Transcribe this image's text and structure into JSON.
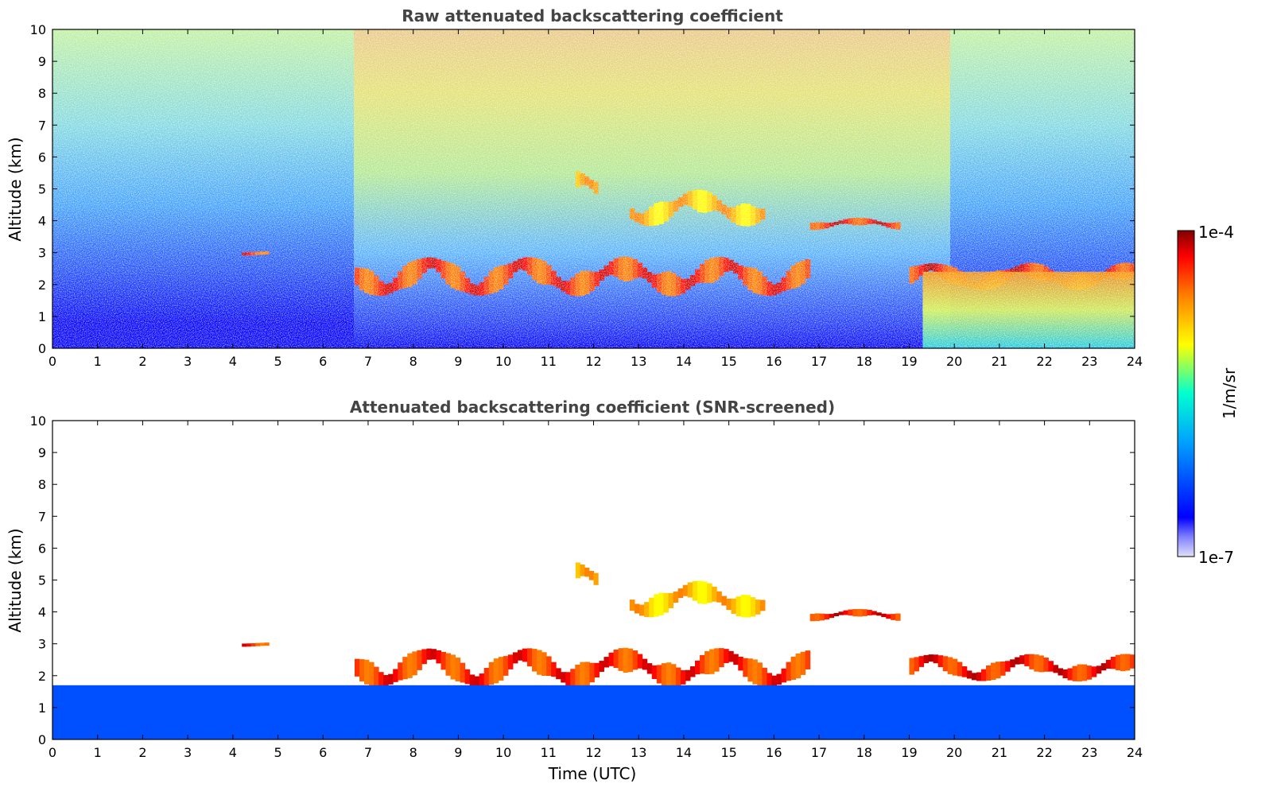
{
  "chart_data": [
    {
      "type": "heatmap",
      "title": "Raw attenuated backscattering coefficient",
      "xlabel": "",
      "ylabel": "Altitude (km)",
      "xlim": [
        0,
        24
      ],
      "ylim": [
        0,
        10
      ],
      "xticks": [
        0,
        1,
        2,
        3,
        4,
        5,
        6,
        7,
        8,
        9,
        10,
        11,
        12,
        13,
        14,
        15,
        16,
        17,
        18,
        19,
        20,
        21,
        22,
        23,
        24
      ],
      "yticks": [
        0,
        1,
        2,
        3,
        4,
        5,
        6,
        7,
        8,
        9,
        10
      ],
      "screened": false,
      "features": [
        {
          "kind": "cloud_layer",
          "x": [
            6.7,
            16.8
          ],
          "y": [
            1.6,
            2.9
          ],
          "level": 0.95
        },
        {
          "kind": "cloud_layer",
          "x": [
            16.8,
            18.8
          ],
          "y": [
            3.7,
            4.1
          ],
          "level": 0.97
        },
        {
          "kind": "cloud_layer",
          "x": [
            19.0,
            24.0
          ],
          "y": [
            1.8,
            2.7
          ],
          "level": 0.97
        },
        {
          "kind": "cloud_layer",
          "x": [
            11.6,
            12.1
          ],
          "y": [
            4.5,
            5.6
          ],
          "level": 0.8
        },
        {
          "kind": "cloud_layer",
          "x": [
            12.8,
            15.8
          ],
          "y": [
            3.8,
            5.0
          ],
          "level": 0.8
        },
        {
          "kind": "cloud_layer",
          "x": [
            4.2,
            4.8
          ],
          "y": [
            2.9,
            3.05
          ],
          "level": 0.95
        },
        {
          "kind": "boundary_layer",
          "x": [
            19.3,
            24.0
          ],
          "y": [
            0.0,
            2.4
          ],
          "level": 0.6
        }
      ]
    },
    {
      "type": "heatmap",
      "title": "Attenuated backscattering coefficient (SNR-screened)",
      "xlabel": "Time (UTC)",
      "ylabel": "Altitude (km)",
      "xlim": [
        0,
        24
      ],
      "ylim": [
        0,
        10
      ],
      "xticks": [
        0,
        1,
        2,
        3,
        4,
        5,
        6,
        7,
        8,
        9,
        10,
        11,
        12,
        13,
        14,
        15,
        16,
        17,
        18,
        19,
        20,
        21,
        22,
        23,
        24
      ],
      "yticks": [
        0,
        1,
        2,
        3,
        4,
        5,
        6,
        7,
        8,
        9,
        10
      ],
      "screened": true,
      "features": [
        {
          "kind": "cloud_layer",
          "x": [
            6.7,
            16.8
          ],
          "y": [
            1.6,
            2.9
          ],
          "level": 0.95
        },
        {
          "kind": "cloud_layer",
          "x": [
            16.8,
            18.8
          ],
          "y": [
            3.7,
            4.1
          ],
          "level": 0.97
        },
        {
          "kind": "cloud_layer",
          "x": [
            19.0,
            24.0
          ],
          "y": [
            1.8,
            2.7
          ],
          "level": 0.97
        },
        {
          "kind": "cloud_layer",
          "x": [
            11.6,
            12.1
          ],
          "y": [
            4.5,
            5.6
          ],
          "level": 0.8
        },
        {
          "kind": "cloud_layer",
          "x": [
            12.8,
            15.8
          ],
          "y": [
            3.8,
            5.0
          ],
          "level": 0.8
        },
        {
          "kind": "cloud_layer",
          "x": [
            4.2,
            4.8
          ],
          "y": [
            2.9,
            3.05
          ],
          "level": 0.95
        },
        {
          "kind": "boundary_layer",
          "x": [
            0,
            24
          ],
          "y": [
            0.0,
            1.7
          ],
          "level": 0.15
        }
      ]
    }
  ],
  "colorbar": {
    "label": "1/m/sr",
    "max_label": "1e-4",
    "min_label": "1e-7",
    "range": [
      "1e-7",
      "1e-4"
    ],
    "colormap": "jet",
    "colors": [
      "#d8d8f0",
      "#0000ff",
      "#00aaff",
      "#00ffcc",
      "#ffff00",
      "#ff8000",
      "#ff0000",
      "#800000"
    ]
  }
}
